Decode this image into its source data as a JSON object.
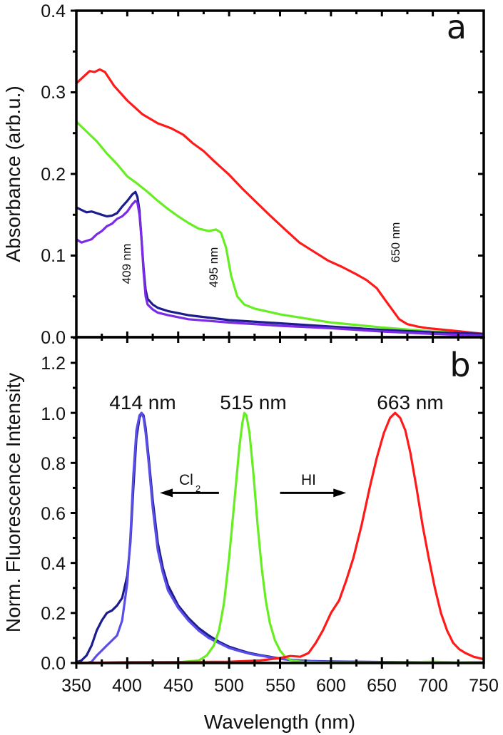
{
  "chart_data": [
    {
      "panel": "a",
      "type": "line",
      "xlabel": "Wavelength (nm)",
      "ylabel": "Absorbance (arb.u.)",
      "xlim": [
        350,
        750
      ],
      "ylim": [
        0.0,
        0.4
      ],
      "xticks": [
        350,
        400,
        450,
        500,
        550,
        600,
        650,
        700,
        750
      ],
      "yticks": [
        "0.0",
        "0.1",
        "0.2",
        "0.3",
        "0.4"
      ],
      "grid": false,
      "annotations": [
        {
          "text": "409 nm",
          "x": 409,
          "y": 0.085,
          "rotation": "vertical"
        },
        {
          "text": "495 nm",
          "x": 482,
          "y": 0.09,
          "rotation": "vertical"
        },
        {
          "text": "650 nm",
          "x": 640,
          "y": 0.13,
          "rotation": "vertical"
        }
      ],
      "series": [
        {
          "name": "red",
          "color": "#ff1a1a",
          "x": [
            350,
            356,
            363,
            368,
            373,
            378,
            387,
            400,
            415,
            430,
            443,
            455,
            464,
            475,
            485,
            500,
            513,
            527,
            541,
            555,
            569,
            583,
            597,
            611,
            625,
            635,
            645,
            653,
            660,
            667,
            675,
            685,
            695,
            720,
            750
          ],
          "y": [
            0.311,
            0.318,
            0.326,
            0.325,
            0.328,
            0.325,
            0.308,
            0.29,
            0.273,
            0.262,
            0.256,
            0.248,
            0.238,
            0.228,
            0.216,
            0.199,
            0.182,
            0.165,
            0.148,
            0.132,
            0.116,
            0.105,
            0.094,
            0.086,
            0.077,
            0.07,
            0.06,
            0.046,
            0.034,
            0.022,
            0.016,
            0.013,
            0.011,
            0.008,
            0.004
          ]
        },
        {
          "name": "green",
          "color": "#66ee22",
          "x": [
            350,
            360,
            370,
            380,
            390,
            400,
            410,
            420,
            430,
            440,
            450,
            460,
            470,
            480,
            487,
            492,
            497,
            502,
            508,
            515,
            525,
            550,
            600,
            650,
            700,
            750
          ],
          "y": [
            0.264,
            0.252,
            0.24,
            0.225,
            0.212,
            0.197,
            0.188,
            0.178,
            0.167,
            0.157,
            0.148,
            0.14,
            0.133,
            0.13,
            0.132,
            0.128,
            0.11,
            0.075,
            0.05,
            0.04,
            0.035,
            0.028,
            0.018,
            0.012,
            0.007,
            0.003
          ]
        },
        {
          "name": "navy",
          "color": "#1c1c8c",
          "x": [
            350,
            355,
            360,
            365,
            370,
            375,
            380,
            385,
            390,
            395,
            400,
            405,
            408,
            410,
            412,
            414,
            416,
            418,
            420,
            425,
            430,
            440,
            460,
            500,
            550,
            600,
            650,
            700,
            750
          ],
          "y": [
            0.159,
            0.156,
            0.153,
            0.154,
            0.152,
            0.15,
            0.148,
            0.149,
            0.152,
            0.16,
            0.167,
            0.175,
            0.178,
            0.172,
            0.155,
            0.12,
            0.085,
            0.058,
            0.047,
            0.04,
            0.036,
            0.032,
            0.027,
            0.021,
            0.017,
            0.013,
            0.009,
            0.006,
            0.004
          ]
        },
        {
          "name": "violet",
          "color": "#7b2ae6",
          "x": [
            350,
            355,
            360,
            365,
            370,
            375,
            380,
            385,
            390,
            395,
            400,
            405,
            408,
            410,
            412,
            414,
            416,
            418,
            420,
            425,
            430,
            440,
            460,
            500,
            550,
            600,
            650,
            700,
            750
          ],
          "y": [
            0.12,
            0.116,
            0.118,
            0.12,
            0.126,
            0.13,
            0.136,
            0.139,
            0.145,
            0.148,
            0.154,
            0.163,
            0.167,
            0.165,
            0.15,
            0.12,
            0.08,
            0.05,
            0.04,
            0.034,
            0.03,
            0.027,
            0.022,
            0.018,
            0.014,
            0.011,
            0.007,
            0.004,
            0.002
          ]
        }
      ]
    },
    {
      "panel": "b",
      "type": "line",
      "xlabel": "Wavelength (nm)",
      "ylabel": "Norm. Fluorescence Intensity",
      "xlim": [
        350,
        750
      ],
      "ylim": [
        0.0,
        1.3
      ],
      "xticks": [
        350,
        400,
        450,
        500,
        550,
        600,
        650,
        700,
        750
      ],
      "yticks": [
        "0.0",
        "0.2",
        "0.4",
        "0.6",
        "0.8",
        "1.0",
        "1.2"
      ],
      "grid": false,
      "annotations": [
        {
          "text": "414 nm",
          "x": 414,
          "y": 1.06
        },
        {
          "text": "515 nm",
          "x": 515,
          "y": 1.06
        },
        {
          "text": "663 nm",
          "x": 663,
          "y": 1.06
        },
        {
          "text": "Cl",
          "sub": "2",
          "x": 475,
          "y": 0.7
        },
        {
          "text": "HI",
          "x": 568,
          "y": 0.7
        }
      ],
      "arrows": [
        {
          "label": "Cl2",
          "from": 490,
          "to": 432,
          "y": 0.68
        },
        {
          "label": "HI",
          "from": 550,
          "to": 615,
          "y": 0.68
        }
      ],
      "series": [
        {
          "name": "navy",
          "color": "#1c1c8c",
          "x": [
            350,
            355,
            360,
            365,
            370,
            375,
            380,
            385,
            390,
            395,
            400,
            403,
            406,
            409,
            412,
            414,
            416,
            418,
            421,
            425,
            430,
            435,
            440,
            450,
            460,
            470,
            480,
            490,
            500,
            510,
            520,
            530,
            540,
            550,
            560,
            570,
            580,
            600,
            650,
            700,
            750
          ],
          "y": [
            0.003,
            0.01,
            0.03,
            0.07,
            0.13,
            0.17,
            0.2,
            0.21,
            0.23,
            0.26,
            0.35,
            0.48,
            0.7,
            0.9,
            0.98,
            1.0,
            0.99,
            0.94,
            0.82,
            0.65,
            0.48,
            0.38,
            0.31,
            0.23,
            0.18,
            0.14,
            0.11,
            0.085,
            0.065,
            0.052,
            0.04,
            0.032,
            0.025,
            0.018,
            0.013,
            0.01,
            0.008,
            0.006,
            0.004,
            0.003,
            0.002
          ]
        },
        {
          "name": "violet-blue",
          "color": "#5a4ee8",
          "x": [
            350,
            360,
            365,
            370,
            375,
            380,
            385,
            390,
            395,
            400,
            403,
            406,
            409,
            412,
            414,
            416,
            418,
            421,
            425,
            430,
            435,
            440,
            450,
            460,
            470,
            480,
            490,
            500,
            510,
            520,
            530,
            540,
            550,
            560,
            570,
            580,
            600,
            650,
            700,
            750
          ],
          "y": [
            0.0,
            0.0,
            0.005,
            0.03,
            0.05,
            0.07,
            0.09,
            0.11,
            0.17,
            0.32,
            0.5,
            0.75,
            0.93,
            0.99,
            1.0,
            0.98,
            0.92,
            0.8,
            0.62,
            0.45,
            0.36,
            0.29,
            0.22,
            0.17,
            0.13,
            0.1,
            0.08,
            0.06,
            0.048,
            0.037,
            0.03,
            0.023,
            0.017,
            0.012,
            0.009,
            0.007,
            0.005,
            0.004,
            0.003,
            0.002
          ]
        },
        {
          "name": "green",
          "color": "#66ee22",
          "x": [
            350,
            400,
            450,
            470,
            478,
            485,
            490,
            495,
            500,
            505,
            510,
            513,
            515,
            517,
            520,
            524,
            528,
            532,
            536,
            540,
            545,
            550,
            555,
            560,
            570,
            600,
            650,
            700,
            750
          ],
          "y": [
            0.0,
            0.0,
            0.003,
            0.01,
            0.03,
            0.07,
            0.13,
            0.24,
            0.42,
            0.64,
            0.86,
            0.96,
            1.0,
            0.99,
            0.92,
            0.75,
            0.55,
            0.38,
            0.25,
            0.16,
            0.09,
            0.05,
            0.025,
            0.012,
            0.005,
            0.002,
            0.0,
            0.005,
            0.0
          ]
        },
        {
          "name": "red",
          "color": "#ff1a1a",
          "x": [
            350,
            400,
            450,
            500,
            530,
            550,
            560,
            570,
            578,
            585,
            592,
            600,
            608,
            615,
            622,
            630,
            638,
            645,
            652,
            658,
            663,
            668,
            673,
            678,
            684,
            690,
            696,
            702,
            708,
            714,
            720,
            726,
            732,
            740,
            750
          ],
          "y": [
            0.0,
            0.003,
            0.004,
            0.005,
            0.01,
            0.02,
            0.028,
            0.025,
            0.04,
            0.08,
            0.13,
            0.2,
            0.25,
            0.33,
            0.42,
            0.55,
            0.7,
            0.82,
            0.92,
            0.98,
            1.0,
            0.98,
            0.93,
            0.84,
            0.7,
            0.55,
            0.42,
            0.3,
            0.2,
            0.13,
            0.08,
            0.055,
            0.04,
            0.025,
            0.015
          ]
        }
      ]
    }
  ]
}
